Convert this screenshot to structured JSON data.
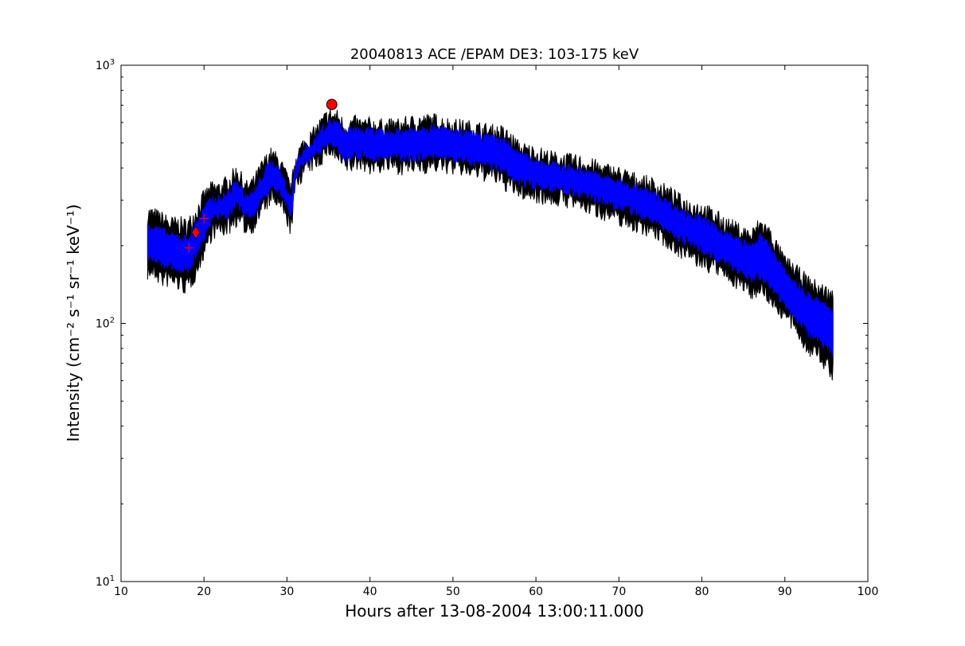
{
  "chart_data": {
    "type": "line",
    "title": "20040813 ACE /EPAM DE3: 103-175 keV",
    "xlabel": "Hours after 13-08-2004 13:00:11.000",
    "ylabel": "Intensity (cm⁻² s⁻¹ sr⁻¹ keV⁻¹)",
    "xlim": [
      10,
      100
    ],
    "ylim": [
      10,
      1000
    ],
    "yscale": "log",
    "x_ticks": [
      10,
      20,
      30,
      40,
      50,
      60,
      70,
      80,
      90,
      100
    ],
    "y_ticks": [
      {
        "value": 10,
        "base": "10",
        "exp": "1"
      },
      {
        "value": 100,
        "base": "10",
        "exp": "2"
      },
      {
        "value": 1000,
        "base": "10",
        "exp": "3"
      }
    ],
    "grid": false,
    "series": [
      {
        "role": "error-band",
        "color": "#000000",
        "x": [
          13.2,
          14,
          15,
          16,
          17,
          18,
          19,
          20,
          21,
          22,
          23,
          24,
          25,
          26,
          27,
          28,
          29,
          30,
          30.5,
          31,
          32,
          33,
          34,
          35,
          36,
          37,
          38,
          39,
          40,
          42,
          44,
          46,
          48,
          50,
          52,
          54,
          55,
          56,
          57,
          58,
          60,
          62,
          64,
          66,
          68,
          70,
          72,
          74,
          76,
          78,
          80,
          82,
          84,
          86,
          87,
          88,
          90,
          91,
          92,
          93,
          94,
          95,
          95.8
        ],
        "upper": [
          265,
          260,
          250,
          240,
          240,
          235,
          265,
          305,
          330,
          330,
          350,
          385,
          330,
          345,
          400,
          445,
          420,
          360,
          320,
          430,
          490,
          520,
          580,
          635,
          625,
          570,
          590,
          580,
          580,
          570,
          580,
          600,
          600,
          575,
          565,
          550,
          545,
          540,
          510,
          470,
          450,
          430,
          420,
          410,
          390,
          375,
          355,
          340,
          315,
          285,
          275,
          250,
          230,
          215,
          240,
          225,
          170,
          160,
          150,
          140,
          135,
          130,
          125
        ],
        "lower": [
          160,
          160,
          150,
          150,
          145,
          140,
          160,
          195,
          230,
          235,
          240,
          260,
          240,
          245,
          285,
          310,
          300,
          260,
          235,
          345,
          400,
          420,
          440,
          485,
          450,
          415,
          420,
          430,
          410,
          420,
          410,
          415,
          420,
          410,
          400,
          385,
          380,
          360,
          345,
          330,
          320,
          310,
          305,
          290,
          275,
          260,
          245,
          235,
          210,
          190,
          175,
          165,
          150,
          135,
          140,
          130,
          110,
          100,
          90,
          80,
          78,
          70,
          65
        ]
      },
      {
        "role": "data",
        "color": "#0000ff",
        "x": [
          13.2,
          14,
          15,
          16,
          17,
          18,
          19,
          20,
          21,
          22,
          23,
          24,
          25,
          26,
          27,
          28,
          29,
          30,
          30.5,
          31,
          32,
          33,
          34,
          35,
          36,
          37,
          38,
          39,
          40,
          42,
          44,
          46,
          48,
          50,
          52,
          54,
          55,
          56,
          57,
          58,
          60,
          62,
          64,
          66,
          68,
          70,
          72,
          74,
          76,
          78,
          80,
          82,
          84,
          86,
          87,
          88,
          90,
          91,
          92,
          93,
          94,
          95,
          95.8
        ],
        "upper": [
          240,
          235,
          225,
          215,
          215,
          210,
          240,
          275,
          300,
          300,
          320,
          350,
          305,
          315,
          370,
          415,
          390,
          330,
          295,
          410,
          465,
          490,
          550,
          600,
          590,
          540,
          560,
          550,
          550,
          540,
          550,
          565,
          570,
          545,
          535,
          520,
          515,
          505,
          480,
          445,
          425,
          405,
          395,
          385,
          365,
          350,
          330,
          315,
          290,
          265,
          250,
          230,
          210,
          195,
          215,
          200,
          155,
          145,
          135,
          125,
          120,
          115,
          110
        ],
        "lower": [
          180,
          180,
          170,
          170,
          165,
          160,
          185,
          220,
          255,
          260,
          265,
          290,
          265,
          270,
          310,
          340,
          330,
          285,
          255,
          365,
          425,
          445,
          470,
          515,
          480,
          445,
          450,
          455,
          440,
          450,
          440,
          445,
          450,
          440,
          430,
          415,
          410,
          390,
          375,
          355,
          345,
          335,
          330,
          315,
          300,
          285,
          270,
          255,
          230,
          210,
          195,
          180,
          165,
          150,
          155,
          145,
          120,
          110,
          100,
          92,
          88,
          82,
          78
        ]
      }
    ],
    "markers": [
      {
        "shape": "circle",
        "x": 35.4,
        "y": 705,
        "color": "#ff0000"
      },
      {
        "shape": "diamond",
        "x": 19.0,
        "y": 225,
        "color": "#ff0000"
      },
      {
        "shape": "plus",
        "x": 18.2,
        "y": 196,
        "color": "#ff0000"
      },
      {
        "shape": "plus",
        "x": 20.0,
        "y": 255,
        "color": "#ff0000"
      }
    ]
  }
}
